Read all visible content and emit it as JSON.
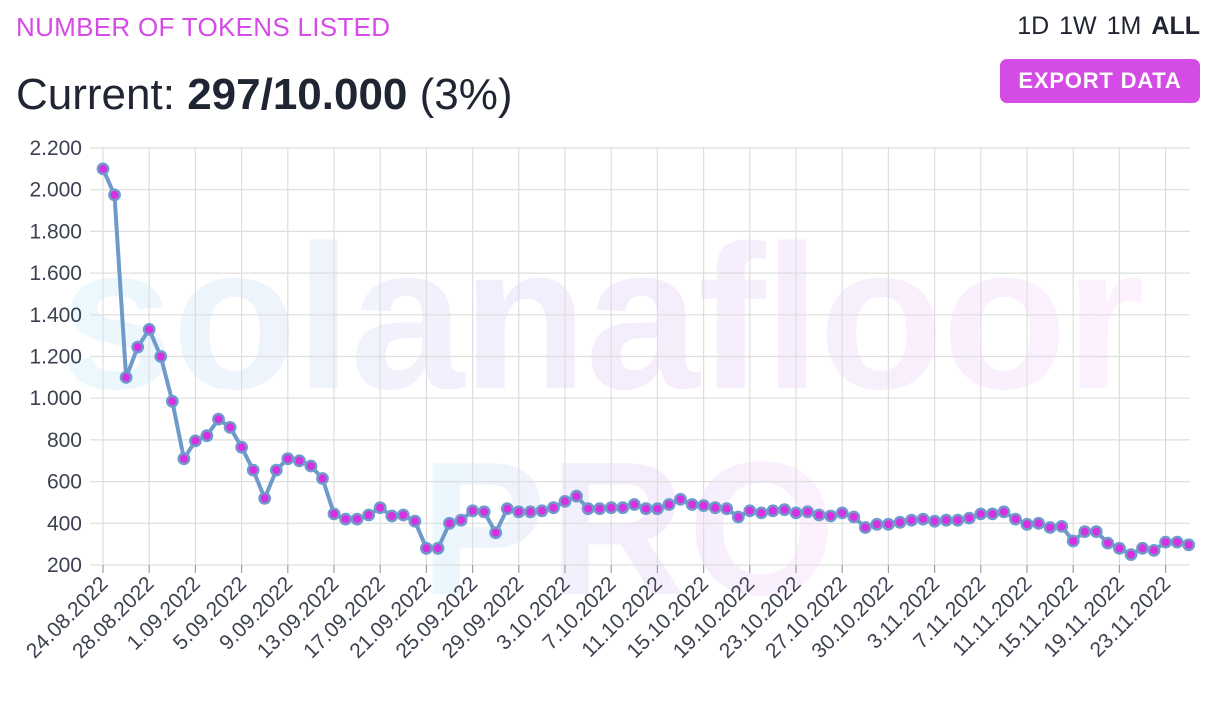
{
  "header": {
    "title": "NUMBER OF TOKENS LISTED",
    "current_label": "Current:",
    "current_value": "297/10.000",
    "current_pct": "(3%)",
    "export_label": "EXPORT DATA"
  },
  "range_tabs": [
    {
      "label": "1D",
      "active": false
    },
    {
      "label": "1W",
      "active": false
    },
    {
      "label": "1M",
      "active": false
    },
    {
      "label": "ALL",
      "active": true
    }
  ],
  "watermark": {
    "brand": "solanafloor",
    "sub": "PRO"
  },
  "colors": {
    "accent": "#d54be6",
    "line": "#6f9bcb",
    "point": "#d730e0",
    "grid": "#dedede"
  },
  "chart_data": {
    "type": "line",
    "title": "NUMBER OF TOKENS LISTED",
    "xlabel": "",
    "ylabel": "",
    "ylim": [
      200,
      2200
    ],
    "yticks": [
      200,
      400,
      600,
      800,
      1000,
      1200,
      1400,
      1600,
      1800,
      2000,
      2200
    ],
    "ytick_labels": [
      "200",
      "400",
      "600",
      "800",
      "1.000",
      "1.200",
      "1.400",
      "1.600",
      "1.800",
      "2.000",
      "2.200"
    ],
    "x_tick_labels": [
      "24.08.2022",
      "28.08.2022",
      "1.09.2022",
      "5.09.2022",
      "9.09.2022",
      "13.09.2022",
      "17.09.2022",
      "21.09.2022",
      "25.09.2022",
      "29.09.2022",
      "3.10.2022",
      "7.10.2022",
      "11.10.2022",
      "15.10.2022",
      "19.10.2022",
      "23.10.2022",
      "27.10.2022",
      "30.10.2022",
      "3.11.2022",
      "7.11.2022",
      "11.11.2022",
      "15.11.2022",
      "19.11.2022",
      "23.11.2022"
    ],
    "grid": true,
    "legend": "none",
    "series": [
      {
        "values": [
          2100,
          1975,
          1100,
          1245,
          1330,
          1200,
          985,
          710,
          795,
          820,
          900,
          860,
          765,
          655,
          520,
          655,
          710,
          700,
          675,
          615,
          445,
          420,
          420,
          440,
          475,
          435,
          440,
          410,
          280,
          280,
          400,
          415,
          460,
          455,
          355,
          470,
          455,
          455,
          460,
          475,
          505,
          530,
          470,
          470,
          475,
          475,
          490,
          470,
          470,
          490,
          515,
          490,
          485,
          475,
          470,
          430,
          460,
          450,
          460,
          465,
          450,
          455,
          440,
          435,
          450,
          430,
          380,
          395,
          395,
          405,
          415,
          420,
          410,
          415,
          415,
          425,
          445,
          445,
          455,
          420,
          395,
          400,
          380,
          385,
          315,
          360,
          360,
          305,
          280,
          250,
          280,
          270,
          310,
          310,
          297
        ]
      }
    ]
  }
}
